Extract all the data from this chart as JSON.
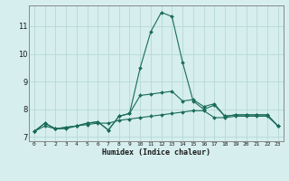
{
  "xlabel": "Humidex (Indice chaleur)",
  "x": [
    0,
    1,
    2,
    3,
    4,
    5,
    6,
    7,
    8,
    9,
    10,
    11,
    12,
    13,
    14,
    15,
    16,
    17,
    18,
    19,
    20,
    21,
    22,
    23
  ],
  "line1": [
    7.2,
    7.5,
    7.3,
    7.35,
    7.4,
    7.5,
    7.55,
    7.25,
    7.75,
    7.85,
    9.5,
    10.8,
    11.5,
    11.35,
    9.7,
    8.3,
    8.0,
    8.15,
    7.75,
    7.8,
    7.8,
    7.8,
    7.8,
    7.4
  ],
  "line2": [
    7.2,
    7.5,
    7.3,
    7.35,
    7.4,
    7.5,
    7.55,
    7.25,
    7.75,
    7.85,
    8.5,
    8.55,
    8.6,
    8.65,
    8.3,
    8.35,
    8.1,
    8.2,
    7.75,
    7.8,
    7.8,
    7.8,
    7.8,
    7.4
  ],
  "line3": [
    7.2,
    7.4,
    7.3,
    7.3,
    7.4,
    7.45,
    7.5,
    7.5,
    7.6,
    7.65,
    7.7,
    7.75,
    7.8,
    7.85,
    7.9,
    7.95,
    7.95,
    7.7,
    7.7,
    7.75,
    7.75,
    7.75,
    7.75,
    7.4
  ],
  "bg_color": "#d6eeee",
  "line_color": "#1a6b5a",
  "grid_color": "#b8d8d8",
  "ylim": [
    6.85,
    11.75
  ],
  "yticks": [
    7,
    8,
    9,
    10,
    11
  ],
  "xlim": [
    -0.5,
    23.5
  ]
}
